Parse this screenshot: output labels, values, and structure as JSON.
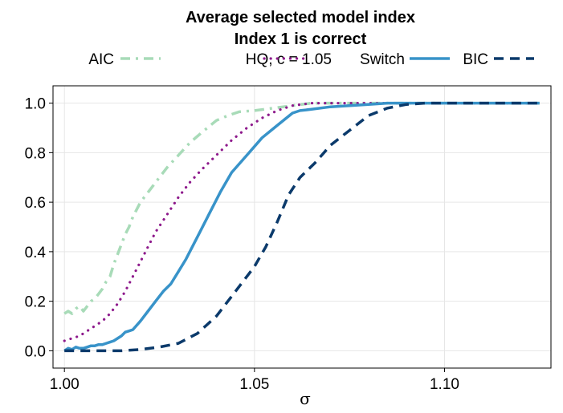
{
  "chart_data": {
    "type": "line",
    "title": "Average selected model index",
    "subtitle": "Index 1 is correct",
    "xlabel": "σ",
    "ylabel": "",
    "xlim": [
      0.997,
      1.128
    ],
    "ylim": [
      -0.07,
      1.07
    ],
    "xticks": [
      1.0,
      1.05,
      1.1
    ],
    "xtick_labels": [
      "1.00",
      "1.05",
      "1.10"
    ],
    "yticks": [
      0.0,
      0.2,
      0.4,
      0.6,
      0.8,
      1.0
    ],
    "ytick_labels": [
      "0.0",
      "0.2",
      "0.4",
      "0.6",
      "0.8",
      "1.0"
    ],
    "grid": true,
    "legend_position": "top",
    "series": [
      {
        "name": "AIC",
        "color": "#a8dbb8",
        "dash": "dashdot",
        "x": [
          1.0,
          1.001,
          1.002,
          1.003,
          1.004,
          1.005,
          1.006,
          1.007,
          1.008,
          1.009,
          1.01,
          1.011,
          1.012,
          1.013,
          1.014,
          1.015,
          1.016,
          1.017,
          1.018,
          1.019,
          1.02,
          1.021,
          1.022,
          1.023,
          1.025,
          1.027,
          1.03,
          1.033,
          1.036,
          1.04,
          1.043,
          1.046,
          1.05,
          1.055,
          1.06,
          1.065,
          1.07,
          1.08,
          1.09,
          1.1,
          1.11,
          1.125
        ],
        "y": [
          0.15,
          0.16,
          0.15,
          0.17,
          0.18,
          0.16,
          0.18,
          0.2,
          0.21,
          0.23,
          0.25,
          0.28,
          0.3,
          0.35,
          0.39,
          0.43,
          0.47,
          0.5,
          0.54,
          0.57,
          0.6,
          0.62,
          0.64,
          0.66,
          0.7,
          0.74,
          0.79,
          0.84,
          0.88,
          0.93,
          0.95,
          0.965,
          0.97,
          0.98,
          0.99,
          1.0,
          1.0,
          1.0,
          1.0,
          1.0,
          1.0,
          1.0
        ]
      },
      {
        "name": "HQ, c = 1.05",
        "color": "#8e1a8c",
        "dash": "dotted",
        "x": [
          1.0,
          1.002,
          1.004,
          1.006,
          1.008,
          1.01,
          1.012,
          1.014,
          1.016,
          1.018,
          1.02,
          1.022,
          1.024,
          1.027,
          1.03,
          1.033,
          1.036,
          1.04,
          1.044,
          1.048,
          1.052,
          1.056,
          1.06,
          1.065,
          1.07,
          1.08,
          1.09,
          1.1,
          1.11,
          1.125
        ],
        "y": [
          0.04,
          0.05,
          0.06,
          0.08,
          0.1,
          0.12,
          0.15,
          0.19,
          0.24,
          0.3,
          0.36,
          0.42,
          0.48,
          0.55,
          0.62,
          0.68,
          0.73,
          0.79,
          0.85,
          0.9,
          0.94,
          0.97,
          0.99,
          1.0,
          1.0,
          1.0,
          1.0,
          1.0,
          1.0,
          1.0
        ]
      },
      {
        "name": "Switch",
        "color": "#3893c9",
        "dash": "solid",
        "x": [
          1.0,
          1.001,
          1.002,
          1.003,
          1.004,
          1.005,
          1.006,
          1.007,
          1.008,
          1.009,
          1.01,
          1.011,
          1.012,
          1.013,
          1.014,
          1.015,
          1.016,
          1.017,
          1.018,
          1.02,
          1.022,
          1.024,
          1.026,
          1.028,
          1.03,
          1.032,
          1.035,
          1.038,
          1.041,
          1.044,
          1.048,
          1.052,
          1.056,
          1.06,
          1.062,
          1.065,
          1.07,
          1.075,
          1.08,
          1.085,
          1.09,
          1.1,
          1.11,
          1.125
        ],
        "y": [
          0.0,
          0.01,
          0.005,
          0.015,
          0.01,
          0.01,
          0.015,
          0.02,
          0.02,
          0.025,
          0.025,
          0.03,
          0.035,
          0.04,
          0.05,
          0.06,
          0.075,
          0.08,
          0.085,
          0.12,
          0.16,
          0.2,
          0.24,
          0.27,
          0.32,
          0.37,
          0.46,
          0.55,
          0.64,
          0.72,
          0.79,
          0.86,
          0.91,
          0.96,
          0.97,
          0.975,
          0.985,
          0.99,
          0.995,
          1.0,
          1.0,
          1.0,
          1.0,
          1.0
        ]
      },
      {
        "name": "BIC",
        "color": "#0b3a6b",
        "dash": "dashed",
        "x": [
          1.0,
          1.005,
          1.01,
          1.015,
          1.02,
          1.025,
          1.03,
          1.035,
          1.04,
          1.045,
          1.05,
          1.053,
          1.056,
          1.059,
          1.062,
          1.066,
          1.07,
          1.075,
          1.08,
          1.085,
          1.09,
          1.095,
          1.1,
          1.11,
          1.125
        ],
        "y": [
          0.0,
          0.0,
          0.0,
          0.0,
          0.005,
          0.015,
          0.03,
          0.07,
          0.14,
          0.24,
          0.34,
          0.42,
          0.52,
          0.63,
          0.7,
          0.76,
          0.83,
          0.89,
          0.95,
          0.98,
          0.995,
          1.0,
          1.0,
          1.0,
          1.0
        ]
      }
    ]
  }
}
